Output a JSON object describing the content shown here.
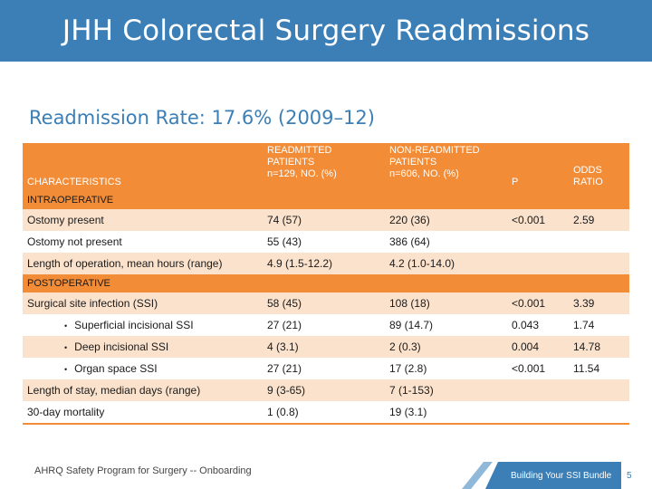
{
  "slide": {
    "title": "JHH Colorectal Surgery Readmissions",
    "subtitle": "Readmission Rate: 17.6% (2009–12)"
  },
  "table": {
    "headers": {
      "characteristics": "CHARACTERISTICS",
      "readmitted": [
        "READMITTED",
        "PATIENTS",
        "n=129, NO. (%)"
      ],
      "non_readmitted": [
        "NON-READMITTED",
        "PATIENTS",
        "n=606, NO. (%)"
      ],
      "p": "P",
      "odds_ratio": [
        "ODDS",
        "RATIO"
      ]
    },
    "sections": [
      {
        "label": "INTRAOPERATIVE",
        "rows": [
          {
            "characteristic": "Ostomy present",
            "readmitted": "74 (57)",
            "non_readmitted": "220 (36)",
            "p": "<0.001",
            "odds_ratio": "2.59"
          },
          {
            "characteristic": "Ostomy not present",
            "readmitted": "55 (43)",
            "non_readmitted": "386 (64)",
            "p": "",
            "odds_ratio": ""
          },
          {
            "characteristic": "Length of operation, mean hours (range)",
            "readmitted": "4.9 (1.5-12.2)",
            "non_readmitted": "4.2 (1.0-14.0)",
            "p": "",
            "odds_ratio": ""
          }
        ]
      },
      {
        "label": "POSTOPERATIVE",
        "rows": [
          {
            "characteristic": "Surgical site infection (SSI)",
            "readmitted": "58 (45)",
            "non_readmitted": "108 (18)",
            "p": "<0.001",
            "odds_ratio": "3.39"
          },
          {
            "characteristic": "Superficial incisional SSI",
            "readmitted": "27 (21)",
            "non_readmitted": "89 (14.7)",
            "p": "0.043",
            "odds_ratio": "1.74"
          },
          {
            "characteristic": "Deep incisional SSI",
            "readmitted": "4 (3.1)",
            "non_readmitted": "2 (0.3)",
            "p": "0.004",
            "odds_ratio": "14.78"
          },
          {
            "characteristic": "Organ space SSI",
            "readmitted": "27 (21)",
            "non_readmitted": "17 (2.8)",
            "p": "<0.001",
            "odds_ratio": "11.54"
          },
          {
            "characteristic": "Length of stay, median days (range)",
            "readmitted": "9 (3-65)",
            "non_readmitted": "7 (1-153)",
            "p": "",
            "odds_ratio": ""
          },
          {
            "characteristic": "30-day mortality",
            "readmitted": "1 (0.8)",
            "non_readmitted": "19 (3.1)",
            "p": "",
            "odds_ratio": ""
          }
        ]
      }
    ]
  },
  "footer": {
    "left_text": "AHRQ Safety Program for Surgery -- Onboarding",
    "badge_text": "Building Your SSI Bundle",
    "page_number": "5"
  },
  "colors": {
    "title_bar": "#3b7fb6",
    "header_orange": "#f28c37",
    "row_alt": "#fbe2cc"
  }
}
